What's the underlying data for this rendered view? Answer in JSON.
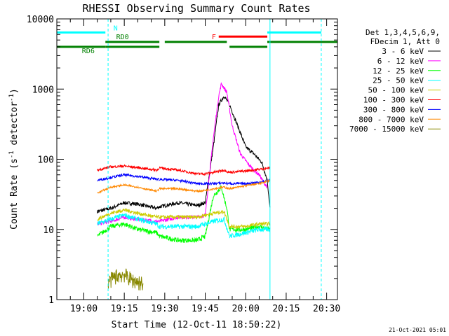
{
  "chart_data": {
    "type": "line",
    "title": "RHESSI Observing Summary Count Rates",
    "xlabel": "Start Time (12-Oct-11 18:50:22)",
    "ylabel": "Count Rate (s",
    "ylabel_exp": "-1",
    "ylabel_tail": " detector",
    "ylabel_end": ")",
    "y_scale": "log",
    "ylim": [
      1,
      10000
    ],
    "y_ticks": [
      {
        "v": 1,
        "label": "1"
      },
      {
        "v": 10,
        "label": "10"
      },
      {
        "v": 100,
        "label": "100"
      },
      {
        "v": 1000,
        "label": "1000"
      },
      {
        "v": 10000,
        "label": "10000"
      }
    ],
    "xlim": [
      "18:50",
      "20:34"
    ],
    "x_ticks": [
      "19:00",
      "19:15",
      "19:30",
      "19:45",
      "20:00",
      "20:15",
      "20:30"
    ],
    "footer": "21-Oct-2021 05:01",
    "legend": {
      "header1": "Det 1,3,4,5,6,9,",
      "header2": "FDecim 1, Att 0",
      "entries": [
        {
          "name": "3 - 6 keV",
          "color": "#000000"
        },
        {
          "name": "6 - 12 keV",
          "color": "#ff00ff"
        },
        {
          "name": "12 - 25 keV",
          "color": "#00ff00"
        },
        {
          "name": "25 - 50 keV",
          "color": "#00ffff"
        },
        {
          "name": "50 - 100 keV",
          "color": "#cccc00"
        },
        {
          "name": "100 - 300 keV",
          "color": "#ff0000"
        },
        {
          "name": "300 - 800 keV",
          "color": "#0000ff"
        },
        {
          "name": "800 - 7000 keV",
          "color": "#ff8800"
        },
        {
          "name": "7000 - 15000 keV",
          "color": "#888800"
        }
      ]
    },
    "segments": [
      [
        "19:05",
        "19:28"
      ],
      [
        "19:28",
        "19:54"
      ],
      [
        "19:54",
        "20:09"
      ]
    ],
    "series": [
      {
        "name": "3 - 6 keV",
        "color": "#000000",
        "noise": 0.06,
        "points": [
          [
            "19:05",
            18
          ],
          [
            "19:10",
            20
          ],
          [
            "19:15",
            24
          ],
          [
            "19:20",
            23
          ],
          [
            "19:27",
            20
          ],
          [
            "19:28",
            21
          ],
          [
            "19:35",
            24
          ],
          [
            "19:42",
            22
          ],
          [
            "19:45",
            24
          ],
          [
            "19:48",
            150
          ],
          [
            "19:50",
            600
          ],
          [
            "19:52",
            800
          ],
          [
            "19:54",
            600
          ],
          [
            "19:57",
            300
          ],
          [
            "20:00",
            150
          ],
          [
            "20:03",
            120
          ],
          [
            "20:06",
            90
          ],
          [
            "20:08",
            50
          ],
          [
            "20:09",
            20
          ]
        ]
      },
      {
        "name": "6 - 12 keV",
        "color": "#ff00ff",
        "noise": 0.06,
        "points": [
          [
            "19:05",
            12
          ],
          [
            "19:10",
            13
          ],
          [
            "19:15",
            15
          ],
          [
            "19:20",
            14
          ],
          [
            "19:27",
            13
          ],
          [
            "19:28",
            13
          ],
          [
            "19:35",
            15
          ],
          [
            "19:42",
            15
          ],
          [
            "19:45",
            16
          ],
          [
            "19:48",
            200
          ],
          [
            "19:50",
            800
          ],
          [
            "19:51",
            1200
          ],
          [
            "19:53",
            900
          ],
          [
            "19:55",
            300
          ],
          [
            "19:58",
            120
          ],
          [
            "20:01",
            85
          ],
          [
            "20:03",
            70
          ],
          [
            "20:05",
            60
          ],
          [
            "20:07",
            45
          ],
          [
            "20:08",
            40
          ]
        ]
      },
      {
        "name": "12 - 25 keV",
        "color": "#00ff00",
        "noise": 0.08,
        "points": [
          [
            "19:05",
            8
          ],
          [
            "19:10",
            11
          ],
          [
            "19:15",
            12
          ],
          [
            "19:20",
            10
          ],
          [
            "19:27",
            9
          ],
          [
            "19:28",
            8
          ],
          [
            "19:35",
            7
          ],
          [
            "19:42",
            7
          ],
          [
            "19:45",
            8
          ],
          [
            "19:48",
            30
          ],
          [
            "19:51",
            40
          ],
          [
            "19:53",
            20
          ],
          [
            "19:54",
            10
          ],
          [
            "20:00",
            10
          ],
          [
            "20:05",
            11
          ],
          [
            "20:09",
            10
          ]
        ]
      },
      {
        "name": "25 - 50 keV",
        "color": "#00ffff",
        "noise": 0.08,
        "points": [
          [
            "19:05",
            12
          ],
          [
            "19:10",
            14
          ],
          [
            "19:15",
            16
          ],
          [
            "19:20",
            14
          ],
          [
            "19:27",
            12
          ],
          [
            "19:28",
            11
          ],
          [
            "19:35",
            11
          ],
          [
            "19:42",
            11
          ],
          [
            "19:45",
            12
          ],
          [
            "19:48",
            13
          ],
          [
            "19:52",
            14
          ],
          [
            "19:54",
            8
          ],
          [
            "20:00",
            9
          ],
          [
            "20:05",
            10
          ],
          [
            "20:09",
            10
          ]
        ]
      },
      {
        "name": "50 - 100 keV",
        "color": "#cccc00",
        "noise": 0.06,
        "points": [
          [
            "19:05",
            14
          ],
          [
            "19:10",
            17
          ],
          [
            "19:15",
            19
          ],
          [
            "19:20",
            17
          ],
          [
            "19:27",
            15
          ],
          [
            "19:28",
            15
          ],
          [
            "19:35",
            15
          ],
          [
            "19:42",
            15
          ],
          [
            "19:45",
            16
          ],
          [
            "19:48",
            17
          ],
          [
            "19:52",
            18
          ],
          [
            "19:54",
            11
          ],
          [
            "20:00",
            11
          ],
          [
            "20:05",
            12
          ],
          [
            "20:09",
            12
          ]
        ]
      },
      {
        "name": "100 - 300 keV",
        "color": "#ff0000",
        "noise": 0.04,
        "points": [
          [
            "19:05",
            70
          ],
          [
            "19:10",
            78
          ],
          [
            "19:15",
            80
          ],
          [
            "19:20",
            76
          ],
          [
            "19:27",
            70
          ],
          [
            "19:28",
            75
          ],
          [
            "19:35",
            70
          ],
          [
            "19:42",
            62
          ],
          [
            "19:45",
            62
          ],
          [
            "19:48",
            65
          ],
          [
            "19:52",
            70
          ],
          [
            "19:54",
            65
          ],
          [
            "20:00",
            68
          ],
          [
            "20:05",
            72
          ],
          [
            "20:09",
            75
          ]
        ]
      },
      {
        "name": "300 - 800 keV",
        "color": "#0000ff",
        "noise": 0.04,
        "points": [
          [
            "19:05",
            50
          ],
          [
            "19:10",
            55
          ],
          [
            "19:15",
            60
          ],
          [
            "19:20",
            57
          ],
          [
            "19:27",
            52
          ],
          [
            "19:28",
            52
          ],
          [
            "19:35",
            50
          ],
          [
            "19:42",
            45
          ],
          [
            "19:45",
            45
          ],
          [
            "19:48",
            45
          ],
          [
            "19:52",
            46
          ],
          [
            "19:54",
            45
          ],
          [
            "20:00",
            45
          ],
          [
            "20:05",
            47
          ],
          [
            "20:09",
            50
          ]
        ]
      },
      {
        "name": "800 - 7000 keV",
        "color": "#ff8800",
        "noise": 0.03,
        "points": [
          [
            "19:05",
            33
          ],
          [
            "19:10",
            40
          ],
          [
            "19:15",
            43
          ],
          [
            "19:20",
            40
          ],
          [
            "19:27",
            35
          ],
          [
            "19:28",
            38
          ],
          [
            "19:35",
            38
          ],
          [
            "19:42",
            35
          ],
          [
            "19:45",
            36
          ],
          [
            "19:48",
            38
          ],
          [
            "19:52",
            40
          ],
          [
            "19:54",
            38
          ],
          [
            "20:00",
            42
          ],
          [
            "20:05",
            45
          ],
          [
            "20:09",
            50
          ]
        ]
      },
      {
        "name": "7000 - 15000 keV",
        "color": "#888800",
        "noise": 0.25,
        "points": [
          [
            "19:09",
            1.8
          ],
          [
            "19:12",
            2.2
          ],
          [
            "19:15",
            2.3
          ],
          [
            "19:18",
            1.9
          ],
          [
            "19:22",
            1.7
          ]
        ]
      }
    ],
    "orbit_bars": [
      {
        "label": "N",
        "color": "#00ffff",
        "level": 6400,
        "spans": [
          [
            "18:50",
            "19:08"
          ],
          [
            "20:08",
            "20:28"
          ]
        ]
      },
      {
        "label": "F",
        "color": "#ff0000",
        "level": 5600,
        "spans": [
          [
            "19:50",
            "20:08"
          ]
        ]
      },
      {
        "label": "RD0",
        "color": "#008000",
        "level": 4700,
        "spans": [
          [
            "19:08",
            "19:28"
          ],
          [
            "19:30",
            "19:53"
          ],
          [
            "20:08",
            "20:34"
          ]
        ]
      },
      {
        "label": "RD6",
        "color": "#008000",
        "level": 4000,
        "spans": [
          [
            "18:50",
            "19:08"
          ],
          [
            "19:08",
            "19:28"
          ],
          [
            "19:54",
            "20:08"
          ]
        ]
      }
    ],
    "vlines": [
      {
        "t": "18:50",
        "color": "#00ffff",
        "style": "solid"
      },
      {
        "t": "19:09",
        "color": "#00ffff",
        "style": "dashed"
      },
      {
        "t": "20:09",
        "color": "#00ffff",
        "style": "solid"
      },
      {
        "t": "20:28",
        "color": "#00ffff",
        "style": "dashed"
      }
    ]
  }
}
